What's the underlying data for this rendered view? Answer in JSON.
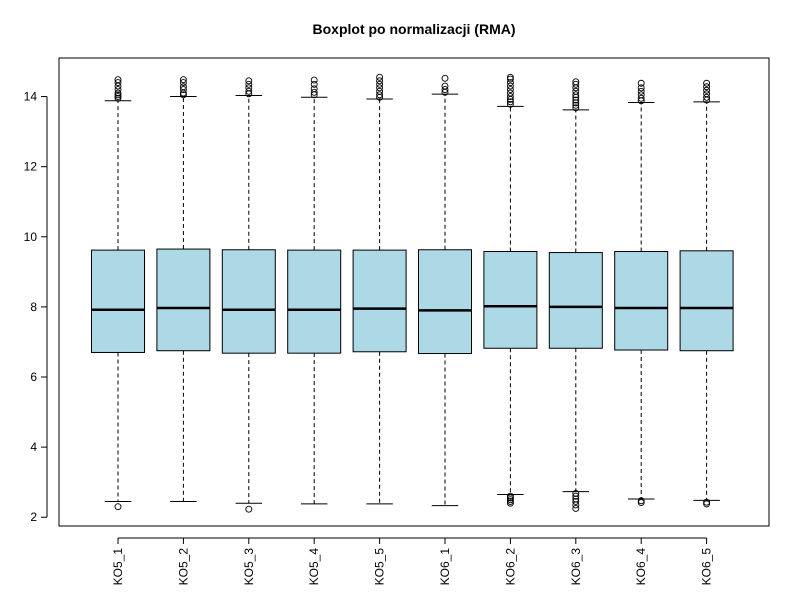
{
  "chart_data": {
    "type": "boxplot",
    "title": "Boxplot po normalizacji (RMA)",
    "xlabel": "",
    "ylabel": "",
    "ylim": [
      1.75,
      15.1
    ],
    "yticks": [
      2,
      4,
      6,
      8,
      10,
      12,
      14
    ],
    "grid": false,
    "box_color": "#ADD8E6",
    "categories": [
      "KO5_1",
      "KO5_2",
      "KO5_3",
      "KO5_4",
      "KO5_5",
      "KO6_1",
      "KO6_2",
      "KO6_3",
      "KO6_4",
      "KO6_5"
    ],
    "boxes": [
      {
        "whisker_low": 2.45,
        "q1": 6.7,
        "median": 7.92,
        "q3": 9.62,
        "whisker_high": 13.88,
        "outliers_low": [
          2.3
        ],
        "outliers_high": [
          13.95,
          14.0,
          14.05,
          14.1,
          14.2,
          14.3,
          14.4,
          14.48
        ]
      },
      {
        "whisker_low": 2.45,
        "q1": 6.75,
        "median": 7.97,
        "q3": 9.65,
        "whisker_high": 14.0,
        "outliers_low": [],
        "outliers_high": [
          14.05,
          14.1,
          14.2,
          14.28,
          14.4,
          14.48
        ]
      },
      {
        "whisker_low": 2.4,
        "q1": 6.68,
        "median": 7.92,
        "q3": 9.63,
        "whisker_high": 14.03,
        "outliers_low": [
          2.23
        ],
        "outliers_high": [
          14.08,
          14.15,
          14.25,
          14.35,
          14.45
        ]
      },
      {
        "whisker_low": 2.38,
        "q1": 6.68,
        "median": 7.92,
        "q3": 9.62,
        "whisker_high": 13.98,
        "outliers_low": [],
        "outliers_high": [
          14.05,
          14.12,
          14.22,
          14.35,
          14.47
        ]
      },
      {
        "whisker_low": 2.38,
        "q1": 6.72,
        "median": 7.95,
        "q3": 9.62,
        "whisker_high": 13.93,
        "outliers_low": [],
        "outliers_high": [
          13.98,
          14.05,
          14.15,
          14.25,
          14.35,
          14.45,
          14.55
        ]
      },
      {
        "whisker_low": 2.33,
        "q1": 6.67,
        "median": 7.9,
        "q3": 9.63,
        "whisker_high": 14.07,
        "outliers_low": [],
        "outliers_high": [
          14.12,
          14.2,
          14.3,
          14.52
        ]
      },
      {
        "whisker_low": 2.65,
        "q1": 6.82,
        "median": 8.02,
        "q3": 9.58,
        "whisker_high": 13.72,
        "outliers_low": [
          2.6,
          2.55,
          2.5,
          2.45,
          2.4
        ],
        "outliers_high": [
          13.78,
          13.85,
          13.92,
          14.0,
          14.1,
          14.2,
          14.3,
          14.4,
          14.5,
          14.55
        ]
      },
      {
        "whisker_low": 2.73,
        "q1": 6.82,
        "median": 8.0,
        "q3": 9.55,
        "whisker_high": 13.62,
        "outliers_low": [
          2.68,
          2.6,
          2.52,
          2.45,
          2.35,
          2.25
        ],
        "outliers_high": [
          13.68,
          13.75,
          13.82,
          13.9,
          13.98,
          14.05,
          14.15,
          14.25,
          14.35,
          14.42
        ]
      },
      {
        "whisker_low": 2.52,
        "q1": 6.77,
        "median": 7.97,
        "q3": 9.58,
        "whisker_high": 13.83,
        "outliers_low": [
          2.47,
          2.42
        ],
        "outliers_high": [
          13.88,
          13.95,
          14.05,
          14.15,
          14.25,
          14.38
        ]
      },
      {
        "whisker_low": 2.48,
        "q1": 6.75,
        "median": 7.97,
        "q3": 9.6,
        "whisker_high": 13.85,
        "outliers_low": [
          2.43,
          2.38
        ],
        "outliers_high": [
          13.9,
          13.98,
          14.08,
          14.18,
          14.28,
          14.38
        ]
      }
    ]
  }
}
